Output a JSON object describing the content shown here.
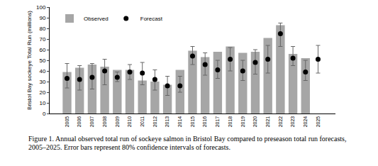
{
  "chart_data": {
    "type": "bar",
    "ylabel": "Bristol Bay sockeye Total Run (millions)",
    "caption": "Figure 1. Annual observed total run of sockeye salmon in Bristol Bay compared to preseason total run forecasts, 2005–2025. Error bars represent 80% confidence intervals of forecasts.",
    "categories": [
      "2005",
      "2006",
      "2007",
      "2008",
      "2009",
      "2010",
      "2011",
      "2012",
      "2013",
      "2014",
      "2015",
      "2016",
      "2017",
      "2018",
      "2019",
      "2020",
      "2021",
      "2022",
      "2023",
      "2024",
      "2025"
    ],
    "series": [
      {
        "name": "Observed",
        "type": "bar",
        "color": "#a6a6a6",
        "values": [
          39,
          43,
          46,
          44,
          41,
          41,
          31,
          30,
          27,
          41,
          59,
          53,
          58,
          63,
          57,
          58,
          71,
          83,
          56,
          52,
          null
        ]
      },
      {
        "name": "Forecast",
        "type": "scatter",
        "color": "#000000",
        "marker": "circle",
        "values": [
          33,
          32,
          34,
          40,
          34,
          39,
          38,
          32,
          26,
          26,
          54,
          46,
          41,
          51,
          40,
          48,
          51,
          75,
          52,
          39,
          51
        ],
        "ci_low": [
          24,
          22,
          23,
          27,
          30,
          32,
          27,
          22,
          17,
          20,
          46,
          36,
          33,
          40,
          31,
          37,
          38,
          63,
          45,
          31,
          38
        ],
        "ci_high": [
          47,
          45,
          47,
          51,
          39,
          46,
          48,
          41,
          35,
          35,
          63,
          57,
          50,
          62,
          50,
          60,
          64,
          85,
          63,
          50,
          64
        ]
      }
    ],
    "ylim": [
      0,
      100
    ],
    "yticks": [
      0,
      10,
      20,
      30,
      40,
      50,
      60,
      70,
      80,
      90,
      100
    ],
    "grid": false,
    "legend": "top left"
  }
}
